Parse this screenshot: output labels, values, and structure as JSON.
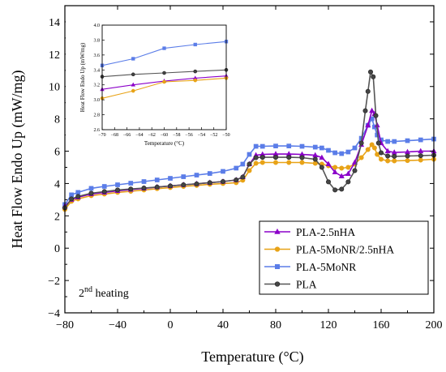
{
  "chart_data": [
    {
      "type": "line",
      "title": "",
      "xlabel": "Temperature (°C)",
      "ylabel": "Heat Flow Endo Up (mW/mg)",
      "xlim": [
        -80,
        200
      ],
      "ylim": [
        -4,
        15
      ],
      "x_ticks": [
        -80,
        -40,
        0,
        40,
        80,
        120,
        160,
        200
      ],
      "y_ticks": [
        -4,
        -2,
        0,
        2,
        4,
        6,
        8,
        10,
        12,
        14
      ],
      "legend_position": "bottom-right",
      "annotation": {
        "main": "2",
        "sup": "nd",
        "rest": " heating"
      },
      "series": [
        {
          "name": "PLA-2.5nHA",
          "color": "#8b00c9",
          "marker": "triangle",
          "x": [
            -80,
            -75,
            -70,
            -60,
            -50,
            -40,
            -30,
            -20,
            -10,
            0,
            10,
            20,
            30,
            40,
            50,
            55,
            60,
            65,
            70,
            80,
            90,
            100,
            110,
            115,
            120,
            125,
            130,
            135,
            140,
            145,
            150,
            153,
            155,
            157,
            160,
            165,
            170,
            180,
            190,
            200
          ],
          "y": [
            2.6,
            3.0,
            3.15,
            3.35,
            3.45,
            3.55,
            3.62,
            3.7,
            3.78,
            3.85,
            3.92,
            3.98,
            4.05,
            4.12,
            4.22,
            4.4,
            5.2,
            5.75,
            5.8,
            5.82,
            5.82,
            5.8,
            5.75,
            5.6,
            5.2,
            4.7,
            4.45,
            4.6,
            5.3,
            6.4,
            7.6,
            8.5,
            8.3,
            7.6,
            6.5,
            6.0,
            5.92,
            5.95,
            6.0,
            6.0
          ]
        },
        {
          "name": "PLA-5MoNR/2.5nHA",
          "color": "#e8a317",
          "marker": "circle",
          "x": [
            -80,
            -75,
            -70,
            -60,
            -50,
            -40,
            -30,
            -20,
            -10,
            0,
            10,
            20,
            30,
            40,
            50,
            55,
            60,
            65,
            70,
            80,
            90,
            100,
            110,
            115,
            120,
            125,
            130,
            135,
            140,
            145,
            150,
            153,
            155,
            157,
            160,
            165,
            170,
            180,
            190,
            200
          ],
          "y": [
            2.4,
            2.9,
            3.05,
            3.25,
            3.35,
            3.45,
            3.52,
            3.6,
            3.68,
            3.75,
            3.82,
            3.88,
            3.95,
            4.0,
            4.05,
            4.2,
            4.8,
            5.25,
            5.3,
            5.3,
            5.3,
            5.3,
            5.25,
            5.2,
            5.1,
            5.0,
            4.95,
            5.0,
            5.2,
            5.6,
            6.1,
            6.4,
            6.2,
            5.8,
            5.5,
            5.4,
            5.4,
            5.42,
            5.45,
            5.5
          ]
        },
        {
          "name": "PLA-5MoNR",
          "color": "#5b7de8",
          "marker": "square",
          "x": [
            -80,
            -75,
            -70,
            -60,
            -50,
            -40,
            -30,
            -20,
            -10,
            0,
            10,
            20,
            30,
            40,
            50,
            55,
            60,
            65,
            70,
            80,
            90,
            100,
            110,
            115,
            120,
            125,
            130,
            135,
            140,
            145,
            150,
            153,
            155,
            157,
            160,
            165,
            170,
            180,
            190,
            200
          ],
          "y": [
            2.7,
            3.3,
            3.45,
            3.7,
            3.82,
            3.92,
            4.02,
            4.12,
            4.22,
            4.32,
            4.42,
            4.52,
            4.62,
            4.75,
            4.95,
            5.2,
            5.8,
            6.3,
            6.3,
            6.32,
            6.32,
            6.3,
            6.25,
            6.2,
            6.05,
            5.9,
            5.85,
            5.95,
            6.2,
            6.8,
            7.6,
            8.0,
            7.5,
            7.0,
            6.7,
            6.6,
            6.6,
            6.65,
            6.7,
            6.75
          ]
        },
        {
          "name": "PLA",
          "color": "#555555",
          "marker": "circle-filled",
          "x": [
            -80,
            -75,
            -70,
            -60,
            -50,
            -40,
            -30,
            -20,
            -10,
            0,
            10,
            20,
            30,
            40,
            50,
            55,
            60,
            65,
            70,
            80,
            90,
            100,
            110,
            115,
            120,
            125,
            130,
            135,
            140,
            145,
            148,
            150,
            152,
            154,
            156,
            158,
            160,
            165,
            170,
            180,
            190,
            200
          ],
          "y": [
            2.5,
            3.05,
            3.2,
            3.4,
            3.5,
            3.6,
            3.66,
            3.72,
            3.78,
            3.85,
            3.92,
            3.98,
            4.05,
            4.12,
            4.22,
            4.4,
            5.2,
            5.6,
            5.62,
            5.62,
            5.62,
            5.6,
            5.5,
            5.0,
            4.1,
            3.6,
            3.65,
            4.1,
            4.8,
            6.5,
            8.5,
            9.7,
            10.9,
            10.6,
            8.2,
            6.5,
            5.9,
            5.7,
            5.68,
            5.7,
            5.72,
            5.75
          ]
        }
      ]
    },
    {
      "type": "line",
      "title": "",
      "xlabel": "Temperature (°C)",
      "ylabel": "Heat Flow Endo Up (mW/mg)",
      "xlim": [
        -70,
        -50
      ],
      "ylim": [
        2.6,
        4.0
      ],
      "x_ticks": [
        -70,
        -68,
        -66,
        -64,
        -62,
        -60,
        -58,
        -56,
        -54,
        -52,
        -50
      ],
      "y_ticks": [
        2.6,
        2.8,
        3.0,
        3.2,
        3.4,
        3.6,
        3.8,
        4.0
      ],
      "series": [
        {
          "name": "PLA-2.5nHA",
          "color": "#8b00c9",
          "marker": "triangle",
          "x": [
            -70,
            -65,
            -60,
            -55,
            -50
          ],
          "y": [
            3.14,
            3.2,
            3.25,
            3.29,
            3.32
          ]
        },
        {
          "name": "PLA-5MoNR/2.5nHA",
          "color": "#e8a317",
          "marker": "circle",
          "x": [
            -70,
            -65,
            -60,
            -55,
            -50
          ],
          "y": [
            3.02,
            3.12,
            3.24,
            3.26,
            3.29
          ]
        },
        {
          "name": "PLA-5MoNR",
          "color": "#5b7de8",
          "marker": "square",
          "x": [
            -70,
            -65,
            -60,
            -55,
            -50
          ],
          "y": [
            3.46,
            3.55,
            3.69,
            3.74,
            3.78
          ]
        },
        {
          "name": "PLA",
          "color": "#555555",
          "marker": "circle-filled",
          "x": [
            -70,
            -65,
            -60,
            -55,
            -50
          ],
          "y": [
            3.31,
            3.34,
            3.36,
            3.38,
            3.4
          ]
        }
      ]
    }
  ]
}
